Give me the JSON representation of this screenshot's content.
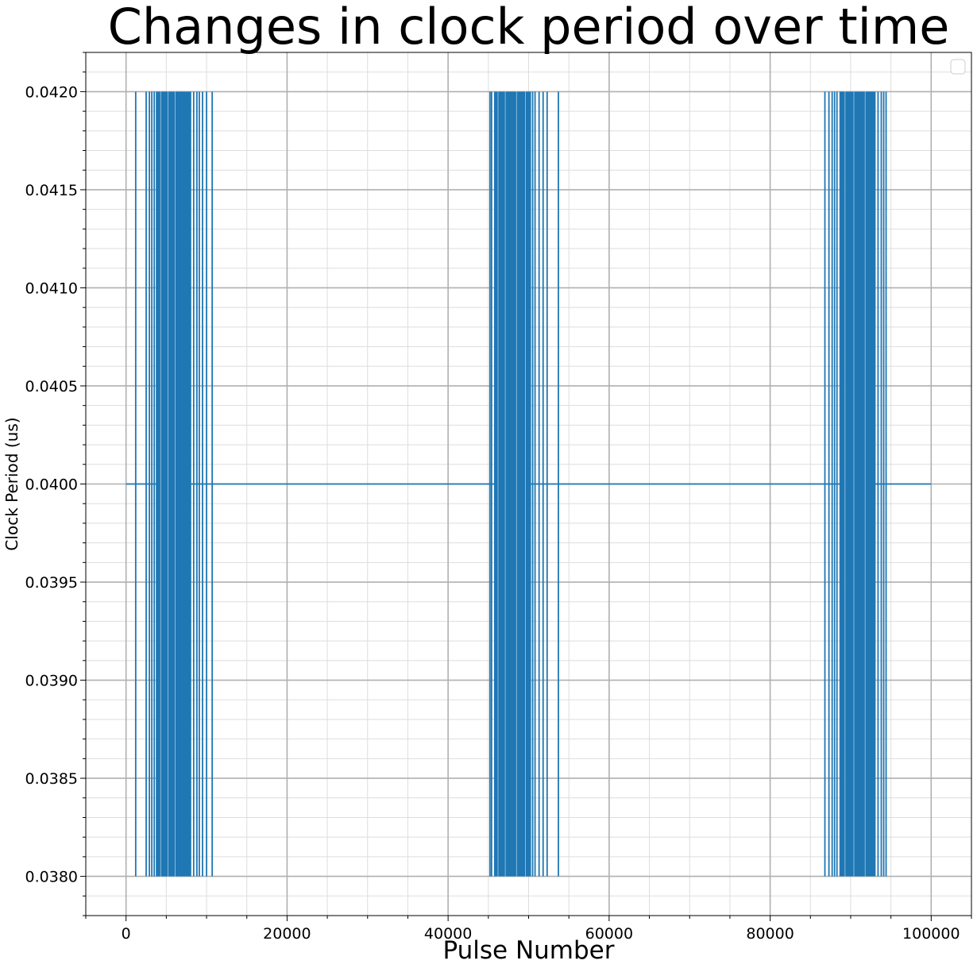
{
  "chart_data": {
    "type": "line",
    "title": "Changes in clock period over time",
    "xlabel": "Pulse Number",
    "ylabel": "Clock Period (us)",
    "xlim": [
      -5000,
      105000
    ],
    "ylim": [
      0.0378,
      0.0422
    ],
    "x_ticks": [
      0,
      20000,
      40000,
      60000,
      80000,
      100000
    ],
    "x_tick_labels": [
      "0",
      "20000",
      "40000",
      "60000",
      "80000",
      "100000"
    ],
    "y_ticks": [
      0.038,
      0.0385,
      0.039,
      0.0395,
      0.04,
      0.0405,
      0.041,
      0.0415,
      0.042
    ],
    "y_tick_labels": [
      "0.0380",
      "0.0385",
      "0.0390",
      "0.0395",
      "0.0400",
      "0.0405",
      "0.0410",
      "0.0415",
      "0.0420"
    ],
    "grid": true,
    "minor_grid": true,
    "legend": "top-right (empty)",
    "series": [
      {
        "color": "#1f77b4",
        "baseline": 0.04,
        "x_range": [
          0,
          100000
        ],
        "oscillation_bands": [
          {
            "x_start": 3700,
            "x_end": 8100,
            "low": 0.038,
            "high": 0.042
          },
          {
            "x_start": 45700,
            "x_end": 50300,
            "low": 0.038,
            "high": 0.042
          },
          {
            "x_start": 88600,
            "x_end": 93100,
            "low": 0.038,
            "high": 0.042
          }
        ],
        "spikes": [
          1200,
          2500,
          2900,
          3200,
          3500,
          8400,
          8800,
          9100,
          9500,
          10000,
          10700,
          45200,
          45400,
          50500,
          50800,
          51300,
          51800,
          52300,
          53700,
          86800,
          87300,
          87700,
          88000,
          88300,
          93400,
          93800,
          94100,
          94400
        ]
      }
    ]
  }
}
